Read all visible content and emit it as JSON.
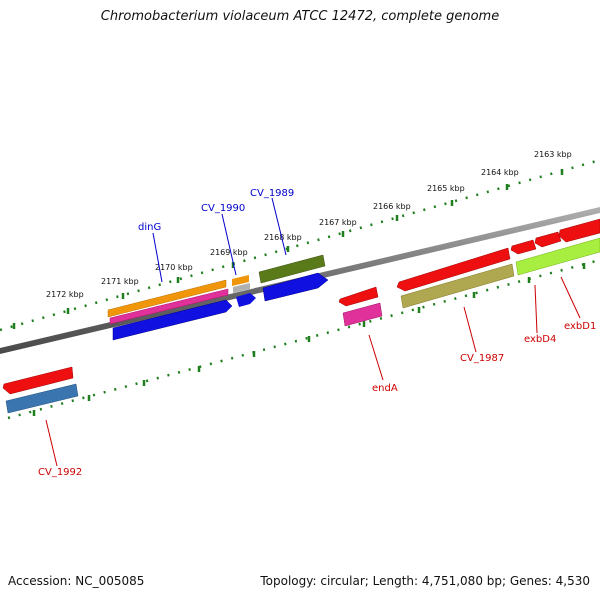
{
  "title": "Chromobacterium violaceum ATCC 12472, complete genome",
  "accession_text": "Accession: NC_005085",
  "meta_text": "Topology: circular; Length: 4,751,080 bp; Genes: 4,530",
  "colors": {
    "backbone": "#7a7a7a",
    "tick_dots": "#1f7f1f",
    "forward_label": "#0000cc",
    "reverse_label": "#cc0000"
  },
  "tick_labels": [
    "2163 kbp",
    "2164 kbp",
    "2165 kbp",
    "2166 kbp",
    "2167 kbp",
    "2168 kbp",
    "2169 kbp",
    "2170 kbp",
    "2171 kbp",
    "2172 kbp"
  ],
  "gene_labels": {
    "forward": [
      "dinG",
      "CV_1990",
      "CV_1989"
    ],
    "reverse": [
      "endA",
      "CV_1987",
      "exbD4",
      "exbD1",
      "CV_1992"
    ]
  }
}
